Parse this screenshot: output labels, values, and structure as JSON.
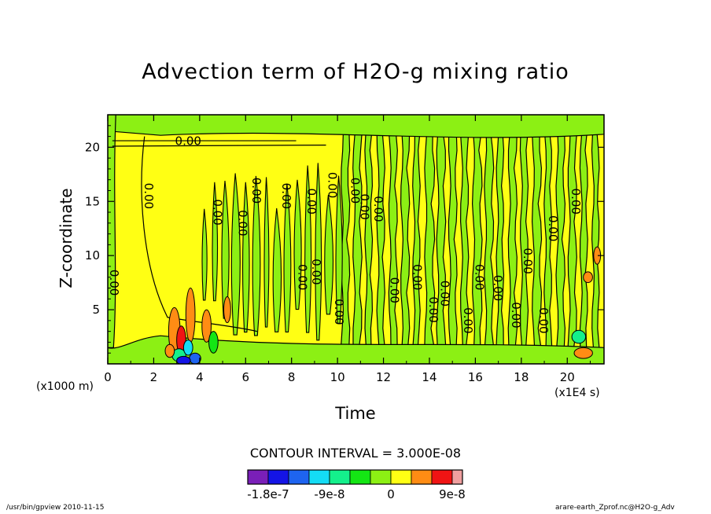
{
  "chart_data": {
    "type": "heatmap",
    "title": "Advection term of H2O-g mixing ratio",
    "xlabel": "Time",
    "ylabel": "Z-coordinate",
    "x_unit": "(x1E4 s)",
    "y_unit": "(x1000 m)",
    "xlim": [
      0,
      21.6
    ],
    "ylim": [
      0,
      23
    ],
    "xticks": [
      "0",
      "2",
      "4",
      "6",
      "8",
      "10",
      "12",
      "14",
      "16",
      "18",
      "20"
    ],
    "yticks": [
      "5",
      "10",
      "15",
      "20"
    ],
    "contour_interval": "CONTOUR INTERVAL = 3.000E-08",
    "contour_labels": [
      {
        "x": 3.5,
        "y": 20.2,
        "text": "0.00"
      },
      {
        "x": 1.6,
        "y": 15.5,
        "text": "0.00"
      },
      {
        "x": 0.1,
        "y": 7.5,
        "text": "0.00"
      },
      {
        "x": 4.6,
        "y": 14.0,
        "text": "0.00"
      },
      {
        "x": 5.7,
        "y": 13.0,
        "text": "0.00"
      },
      {
        "x": 6.3,
        "y": 16.0,
        "text": "0.00"
      },
      {
        "x": 7.6,
        "y": 15.5,
        "text": "0.00"
      },
      {
        "x": 8.7,
        "y": 15.0,
        "text": "0.00"
      },
      {
        "x": 9.6,
        "y": 16.5,
        "text": "0.00"
      },
      {
        "x": 10.6,
        "y": 16.0,
        "text": "0.00"
      },
      {
        "x": 11.0,
        "y": 14.5,
        "text": "0.00"
      },
      {
        "x": 11.6,
        "y": 14.3,
        "text": "0.00"
      },
      {
        "x": 8.3,
        "y": 8.0,
        "text": "0.00"
      },
      {
        "x": 8.9,
        "y": 8.5,
        "text": "0.00"
      },
      {
        "x": 9.9,
        "y": 4.8,
        "text": "0.00"
      },
      {
        "x": 12.3,
        "y": 6.8,
        "text": "0.00"
      },
      {
        "x": 13.3,
        "y": 8.0,
        "text": "0.00"
      },
      {
        "x": 14.0,
        "y": 5.0,
        "text": "0.00"
      },
      {
        "x": 14.5,
        "y": 6.5,
        "text": "0.00"
      },
      {
        "x": 15.5,
        "y": 4.0,
        "text": "0.00"
      },
      {
        "x": 16.0,
        "y": 8.0,
        "text": "0.00"
      },
      {
        "x": 16.8,
        "y": 7.0,
        "text": "0.00"
      },
      {
        "x": 17.6,
        "y": 4.5,
        "text": "0.00"
      },
      {
        "x": 18.1,
        "y": 9.5,
        "text": "0.00"
      },
      {
        "x": 18.8,
        "y": 4.0,
        "text": "0.00"
      },
      {
        "x": 19.2,
        "y": 12.5,
        "text": "0.00"
      },
      {
        "x": 20.2,
        "y": 15.0,
        "text": "0.00"
      }
    ],
    "colorbar": {
      "colors": [
        "#7a1fb8",
        "#1414e6",
        "#1e64f0",
        "#14dcf5",
        "#14f08c",
        "#14e614",
        "#8cf014",
        "#ffff14",
        "#ff8c14",
        "#f01414",
        "#f0a0a0"
      ],
      "tick_labels": [
        "-1.8e-7",
        "-9e-8",
        "0",
        "9e-8"
      ]
    },
    "footer_left": "/usr/bin/gpview   2010-11-15",
    "footer_right": "arare-earth_Zprof.nc@H2O-g_Adv"
  }
}
